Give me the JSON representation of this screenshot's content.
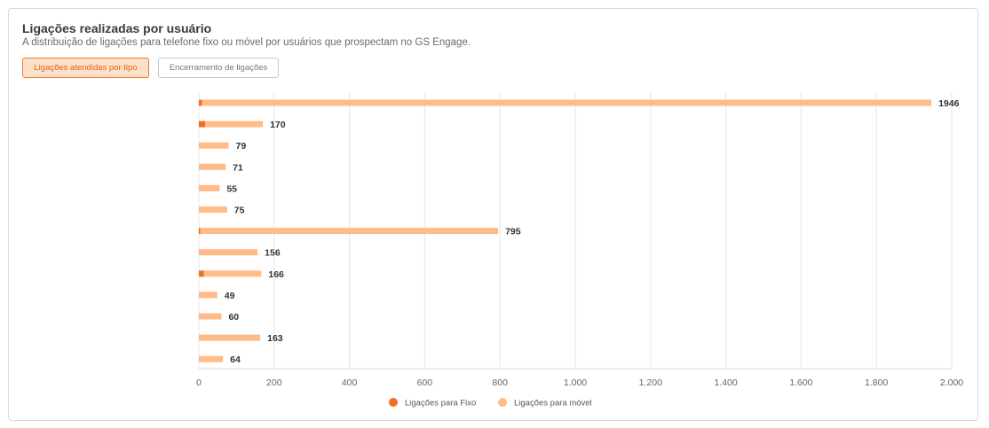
{
  "header": {
    "title": "Ligações realizadas por usuário",
    "subtitle": "A distribuição de ligações para telefone fixo ou móvel por usuários que prospectam no GS Engage."
  },
  "tabs": [
    {
      "label": "Ligações atendidas por tipo",
      "active": true
    },
    {
      "label": "Encerramento de ligações",
      "active": false
    }
  ],
  "colors": {
    "fixo": "#f07022",
    "movel": "#ffbb88",
    "grid": "#e6e6e6"
  },
  "chart_data": {
    "type": "bar",
    "orientation": "horizontal",
    "stacked": true,
    "categories": [
      "",
      "",
      "",
      "",
      "",
      "",
      "",
      "",
      "",
      "",
      "",
      "",
      ""
    ],
    "series": [
      {
        "name": "Ligações para Fixo",
        "values": [
          8,
          17,
          0,
          0,
          0,
          0,
          3,
          0,
          13,
          0,
          0,
          0,
          0
        ]
      },
      {
        "name": "Ligações para móvel",
        "values": [
          1938,
          153,
          79,
          71,
          55,
          75,
          792,
          156,
          153,
          49,
          60,
          163,
          64
        ]
      }
    ],
    "totals": [
      1946,
      170,
      79,
      71,
      55,
      75,
      795,
      156,
      166,
      49,
      60,
      163,
      64
    ],
    "xlim": [
      0,
      2000
    ],
    "xticks": [
      0,
      200,
      400,
      600,
      800,
      1000,
      1200,
      1400,
      1600,
      1800,
      2000
    ],
    "xtick_labels": [
      "0",
      "200",
      "400",
      "600",
      "800",
      "1.000",
      "1.200",
      "1.400",
      "1.600",
      "1.800",
      "2.000"
    ],
    "grid": true,
    "legend_position": "bottom"
  }
}
